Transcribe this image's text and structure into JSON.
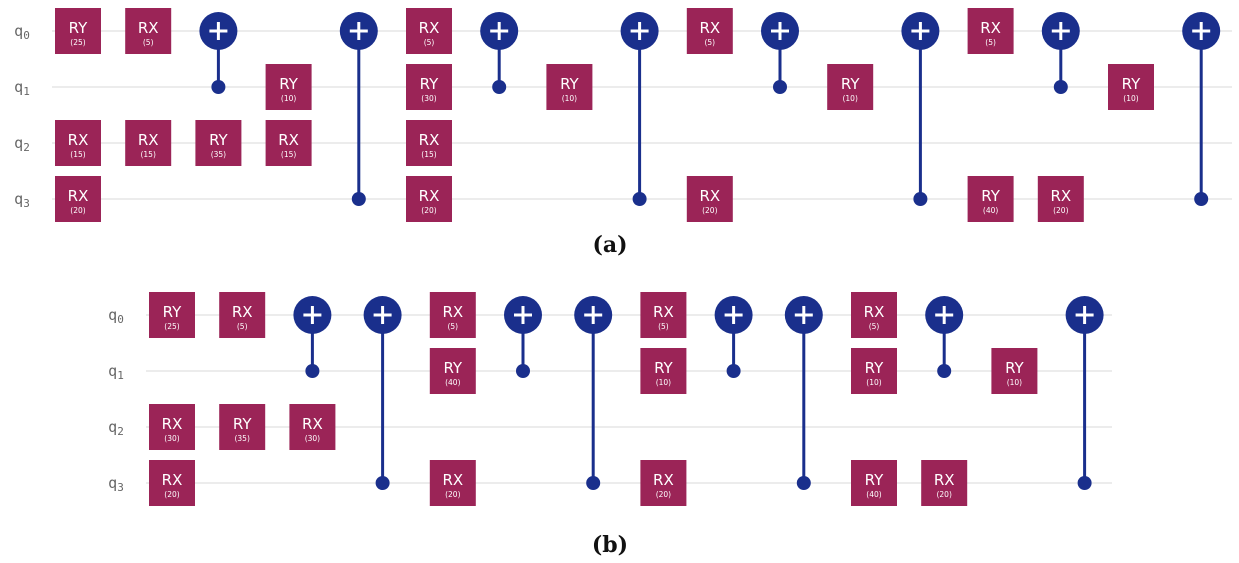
{
  "colors": {
    "gate_fill": "#9b2457",
    "control": "#1a2f8c",
    "wire": "#e6e6e6",
    "text_on_gate": "#ffffff"
  },
  "circuits": [
    {
      "id": "a",
      "caption": "(a)",
      "qubits": [
        "q0",
        "q1",
        "q2",
        "q3"
      ],
      "moments": [
        [
          {
            "type": "RY",
            "param": "(25)",
            "qubit": 0
          },
          {
            "type": "RX",
            "param": "(15)",
            "qubit": 2
          },
          {
            "type": "RX",
            "param": "(20)",
            "qubit": 3
          }
        ],
        [
          {
            "type": "RX",
            "param": "(5)",
            "qubit": 0
          },
          {
            "type": "RX",
            "param": "(15)",
            "qubit": 2
          }
        ],
        [
          {
            "type": "CNOT",
            "target": 0,
            "control": 1
          },
          {
            "type": "RY",
            "param": "(35)",
            "qubit": 2
          }
        ],
        [
          {
            "type": "RY",
            "param": "(10)",
            "qubit": 1
          },
          {
            "type": "RX",
            "param": "(15)",
            "qubit": 2
          }
        ],
        [
          {
            "type": "CNOT",
            "target": 0,
            "control": 3
          }
        ],
        [
          {
            "type": "RX",
            "param": "(5)",
            "qubit": 0
          },
          {
            "type": "RY",
            "param": "(30)",
            "qubit": 1
          },
          {
            "type": "RX",
            "param": "(15)",
            "qubit": 2
          },
          {
            "type": "RX",
            "param": "(20)",
            "qubit": 3
          }
        ],
        [
          {
            "type": "CNOT",
            "target": 0,
            "control": 1
          }
        ],
        [
          {
            "type": "RY",
            "param": "(10)",
            "qubit": 1
          }
        ],
        [
          {
            "type": "CNOT",
            "target": 0,
            "control": 3
          }
        ],
        [
          {
            "type": "RX",
            "param": "(5)",
            "qubit": 0
          },
          {
            "type": "RX",
            "param": "(20)",
            "qubit": 3
          }
        ],
        [
          {
            "type": "CNOT",
            "target": 0,
            "control": 1
          }
        ],
        [
          {
            "type": "RY",
            "param": "(10)",
            "qubit": 1
          }
        ],
        [
          {
            "type": "CNOT",
            "target": 0,
            "control": 3
          }
        ],
        [
          {
            "type": "RX",
            "param": "(5)",
            "qubit": 0
          },
          {
            "type": "RY",
            "param": "(40)",
            "qubit": 3
          }
        ],
        [
          {
            "type": "CNOT",
            "target": 0,
            "control": 1
          },
          {
            "type": "RX",
            "param": "(20)",
            "qubit": 3
          }
        ],
        [
          {
            "type": "RY",
            "param": "(10)",
            "qubit": 1
          }
        ],
        [
          {
            "type": "CNOT",
            "target": 0,
            "control": 3
          }
        ]
      ]
    },
    {
      "id": "b",
      "caption": "(b)",
      "qubits": [
        "q0",
        "q1",
        "q2",
        "q3"
      ],
      "moments": [
        [
          {
            "type": "RY",
            "param": "(25)",
            "qubit": 0
          },
          {
            "type": "RX",
            "param": "(30)",
            "qubit": 2
          },
          {
            "type": "RX",
            "param": "(20)",
            "qubit": 3
          }
        ],
        [
          {
            "type": "RX",
            "param": "(5)",
            "qubit": 0
          },
          {
            "type": "RY",
            "param": "(35)",
            "qubit": 2
          }
        ],
        [
          {
            "type": "CNOT",
            "target": 0,
            "control": 1
          },
          {
            "type": "RX",
            "param": "(30)",
            "qubit": 2
          }
        ],
        [
          {
            "type": "CNOT",
            "target": 0,
            "control": 3
          }
        ],
        [
          {
            "type": "RX",
            "param": "(5)",
            "qubit": 0
          },
          {
            "type": "RY",
            "param": "(40)",
            "qubit": 1
          },
          {
            "type": "RX",
            "param": "(20)",
            "qubit": 3
          }
        ],
        [
          {
            "type": "CNOT",
            "target": 0,
            "control": 1
          }
        ],
        [
          {
            "type": "CNOT",
            "target": 0,
            "control": 3
          }
        ],
        [
          {
            "type": "RX",
            "param": "(5)",
            "qubit": 0
          },
          {
            "type": "RY",
            "param": "(10)",
            "qubit": 1
          },
          {
            "type": "RX",
            "param": "(20)",
            "qubit": 3
          }
        ],
        [
          {
            "type": "CNOT",
            "target": 0,
            "control": 1
          }
        ],
        [
          {
            "type": "CNOT",
            "target": 0,
            "control": 3
          }
        ],
        [
          {
            "type": "RX",
            "param": "(5)",
            "qubit": 0
          },
          {
            "type": "RY",
            "param": "(10)",
            "qubit": 1
          },
          {
            "type": "RY",
            "param": "(40)",
            "qubit": 3
          }
        ],
        [
          {
            "type": "CNOT",
            "target": 0,
            "control": 1
          },
          {
            "type": "RX",
            "param": "(20)",
            "qubit": 3
          }
        ],
        [
          {
            "type": "RY",
            "param": "(10)",
            "qubit": 1
          }
        ],
        [
          {
            "type": "CNOT",
            "target": 0,
            "control": 3
          }
        ]
      ]
    }
  ]
}
